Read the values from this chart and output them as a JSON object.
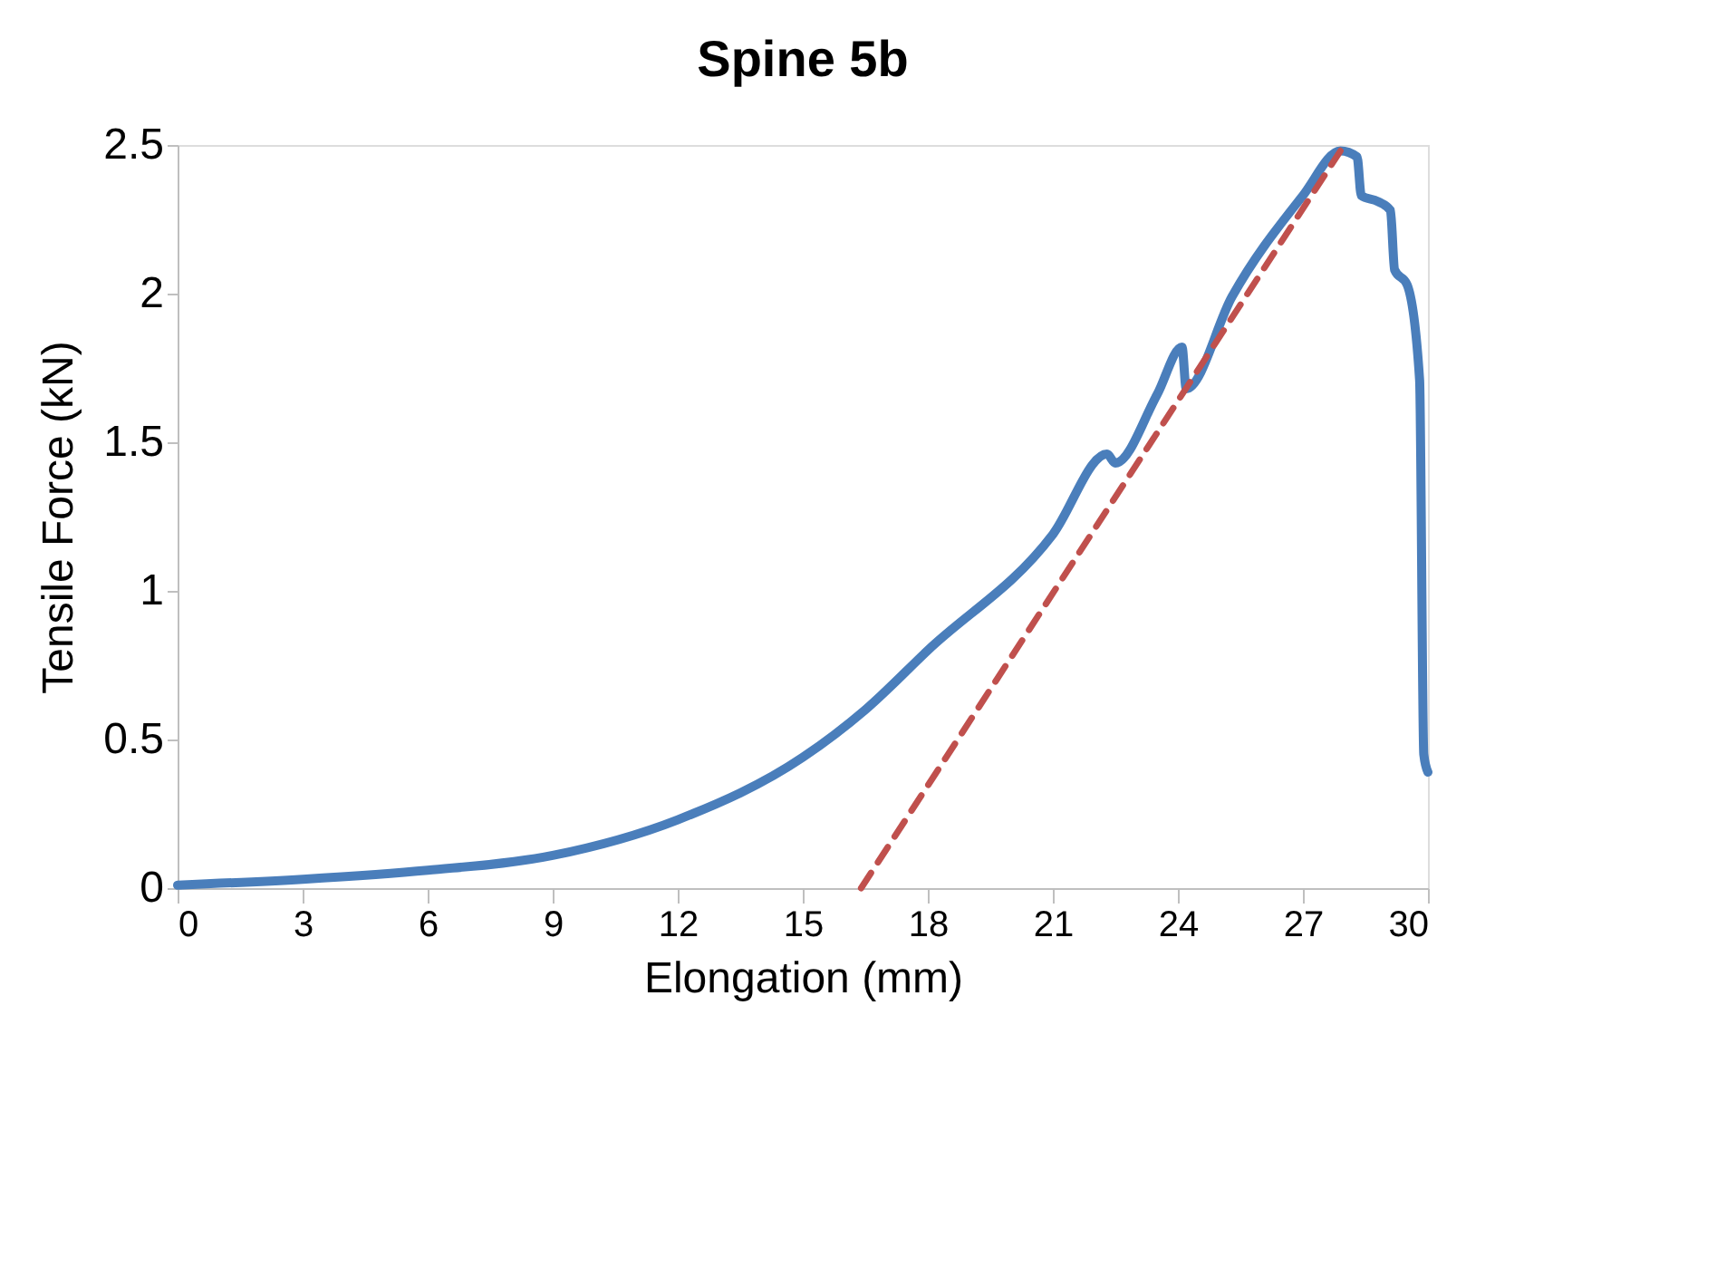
{
  "chart_data": {
    "type": "line",
    "title": "Spine 5b",
    "xlabel": "Elongation (mm)",
    "ylabel": "Tensile Force (kN)",
    "xlim": [
      0,
      30
    ],
    "ylim": [
      0,
      2.5
    ],
    "xticks": [
      0,
      3,
      6,
      9,
      12,
      15,
      18,
      21,
      24,
      27,
      30
    ],
    "yticks": [
      0,
      0.5,
      1,
      1.5,
      2,
      2.5
    ],
    "grid": false,
    "marker": "none",
    "series": [
      {
        "color": "#4a7ebb",
        "line_style": "solid",
        "x": [
          0,
          3,
          6,
          9,
          12,
          15,
          16.5,
          18,
          21,
          22.3,
          22.5,
          23.5,
          24.1,
          24.2,
          25.3,
          27,
          27.9,
          28.3,
          28.4,
          28.8,
          29.1,
          29.2,
          29.5,
          29.8,
          29.9,
          30
        ],
        "values": [
          0.01,
          0.03,
          0.06,
          0.11,
          0.23,
          0.44,
          0.6,
          0.8,
          1.19,
          1.46,
          1.43,
          1.66,
          1.82,
          1.68,
          1.99,
          2.33,
          2.48,
          2.46,
          2.33,
          2.31,
          2.28,
          2.08,
          2.03,
          1.71,
          0.45,
          0.39
        ]
      },
      {
        "color": "#c0504d",
        "line_style": "dashed",
        "x": [
          16.4,
          27.9
        ],
        "values": [
          0,
          2.48
        ]
      }
    ]
  }
}
